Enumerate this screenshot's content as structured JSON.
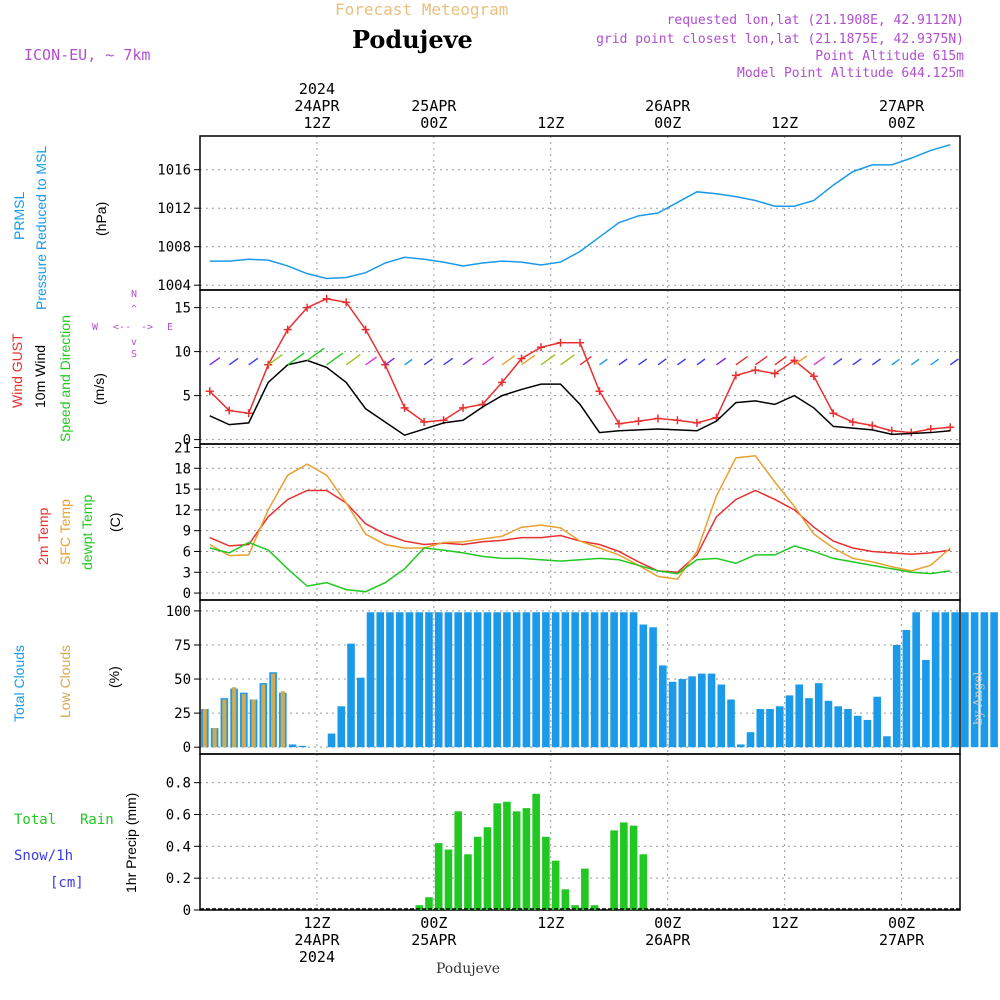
{
  "header": {
    "subtitle": "Forecast Meteogram",
    "location": "Podujeve",
    "model": "ICON-EU, ~ 7km",
    "requested": "requested lon,lat (21.1908E, 42.9112N)",
    "grid": "grid point closest lon,lat (21.1875E, 42.9375N)",
    "altitude": "Point Altitude 615m",
    "model_altitude": "Model Point Altitude 644.125m",
    "footer": "Podujeve",
    "credit": "by Angel"
  },
  "time_axis": {
    "top_labels": [
      {
        "h": 12,
        "lines": [
          "2024",
          "24APR",
          "12Z"
        ]
      },
      {
        "h": 24,
        "lines": [
          "25APR",
          "00Z"
        ]
      },
      {
        "h": 36,
        "lines": [
          "12Z"
        ]
      },
      {
        "h": 48,
        "lines": [
          "26APR",
          "00Z"
        ]
      },
      {
        "h": 60,
        "lines": [
          "12Z"
        ]
      },
      {
        "h": 72,
        "lines": [
          "27APR",
          "00Z"
        ]
      }
    ],
    "bottom_labels": [
      {
        "h": 12,
        "lines": [
          "12Z",
          "24APR",
          "2024"
        ]
      },
      {
        "h": 24,
        "lines": [
          "00Z",
          "25APR"
        ]
      },
      {
        "h": 36,
        "lines": [
          "12Z"
        ]
      },
      {
        "h": 48,
        "lines": [
          "00Z",
          "26APR"
        ]
      },
      {
        "h": 60,
        "lines": [
          "12Z"
        ]
      },
      {
        "h": 72,
        "lines": [
          "00Z",
          "27APR"
        ]
      }
    ]
  },
  "panels": {
    "pressure": {
      "label1": "PRMSL",
      "label2": "Pressure Reduced to MSL",
      "unit": "(hPa)",
      "color": "#1a9ae8"
    },
    "wind": {
      "label_gust": "Wind GUST",
      "label_wind1": "10m Wind",
      "label_wind2": "Speed and Direction",
      "unit": "(m/s)",
      "compass_n": "N",
      "compass_s": "S",
      "compass_w": "W",
      "compass_e": "E"
    },
    "temp": {
      "label1": "2m Temp",
      "label2": "SFC Temp",
      "label3": "dewpt Temp",
      "unit": "(C)"
    },
    "clouds": {
      "label1": "Total Clouds",
      "label2": "Low Clouds",
      "unit": "(%)"
    },
    "precip": {
      "label1": "Total",
      "label2": "Rain",
      "label3": "Snow/1h",
      "label4": "[cm]",
      "unit": "1hr Precip (mm)"
    }
  },
  "chart_data": [
    {
      "type": "line",
      "title": "PRMSL Pressure Reduced to MSL",
      "ylabel": "hPa",
      "ylim": [
        1003.5,
        1019.5
      ],
      "yticks": [
        1004,
        1008,
        1012,
        1016
      ],
      "x": [
        1,
        3,
        5,
        7,
        9,
        11,
        13,
        15,
        17,
        19,
        21,
        23,
        25,
        27,
        29,
        31,
        33,
        35,
        37,
        39,
        41,
        43,
        45,
        47,
        49,
        51,
        53,
        55,
        57,
        59,
        61,
        63,
        65,
        67,
        69,
        71,
        73,
        75,
        77
      ],
      "series": [
        {
          "name": "PRMSL",
          "values": [
            1006.5,
            1006.5,
            1006.7,
            1006.6,
            1006.0,
            1005.2,
            1004.7,
            1004.8,
            1005.3,
            1006.3,
            1006.9,
            1006.7,
            1006.4,
            1006.0,
            1006.3,
            1006.5,
            1006.4,
            1006.1,
            1006.4,
            1007.5,
            1009.0,
            1010.5,
            1011.2,
            1011.5,
            1012.6,
            1013.7,
            1013.5,
            1013.2,
            1012.8,
            1012.2,
            1012.2,
            1012.8,
            1014.4,
            1015.8,
            1016.5,
            1016.5,
            1017.2,
            1018.0,
            1018.6
          ]
        }
      ]
    },
    {
      "type": "line",
      "title": "Wind GUST / 10m Wind Speed and Direction",
      "ylabel": "m/s",
      "ylim": [
        -0.5,
        17
      ],
      "yticks": [
        0,
        5,
        10,
        15
      ],
      "x": [
        1,
        3,
        5,
        7,
        9,
        11,
        13,
        15,
        17,
        19,
        21,
        23,
        25,
        27,
        29,
        31,
        33,
        35,
        37,
        39,
        41,
        43,
        45,
        47,
        49,
        51,
        53,
        55,
        57,
        59,
        61,
        63,
        65,
        67,
        69,
        71,
        73,
        75,
        77
      ],
      "series": [
        {
          "name": "Wind GUST",
          "color": "#e83030",
          "values": [
            5.5,
            3.3,
            3.0,
            8.5,
            12.5,
            15.0,
            16.0,
            15.6,
            12.5,
            8.5,
            3.6,
            2.0,
            2.2,
            3.6,
            4.0,
            6.5,
            9.2,
            10.5,
            11.0,
            11.0,
            5.5,
            1.8,
            2.1,
            2.4,
            2.2,
            1.9,
            2.5,
            7.3,
            7.9,
            7.5,
            9.0,
            7.2,
            3.0,
            2.0,
            1.6,
            1.0,
            0.8,
            1.2,
            1.4
          ]
        },
        {
          "name": "10m Wind",
          "color": "#000000",
          "values": [
            2.7,
            1.7,
            1.9,
            6.5,
            8.5,
            9.0,
            8.2,
            6.5,
            3.5,
            2.0,
            0.5,
            1.2,
            1.9,
            2.2,
            3.7,
            5.0,
            5.7,
            6.3,
            6.3,
            4.0,
            0.8,
            1.0,
            1.1,
            1.2,
            1.1,
            1.0,
            2.1,
            4.2,
            4.4,
            4.0,
            5.0,
            3.6,
            1.5,
            1.3,
            1.1,
            0.6,
            0.7,
            0.8,
            1.0
          ]
        }
      ],
      "arrow_hours": [
        1,
        3,
        5,
        7,
        9,
        11,
        13,
        15,
        17,
        19,
        21,
        23,
        25,
        27,
        29,
        31,
        33,
        35,
        37,
        39,
        41,
        43,
        45,
        47,
        49,
        51,
        53,
        55,
        57,
        59,
        61,
        63,
        65,
        67,
        69,
        71,
        73,
        75,
        77
      ]
    },
    {
      "type": "line",
      "title": "2m Temp / SFC Temp / dewpt Temp",
      "ylabel": "C",
      "ylim": [
        -1,
        21.5
      ],
      "yticks": [
        0,
        3,
        6,
        9,
        12,
        15,
        18,
        21
      ],
      "x": [
        1,
        3,
        5,
        7,
        9,
        11,
        13,
        15,
        17,
        19,
        21,
        23,
        25,
        27,
        29,
        31,
        33,
        35,
        37,
        39,
        41,
        43,
        45,
        47,
        49,
        51,
        53,
        55,
        57,
        59,
        61,
        63,
        65,
        67,
        69,
        71,
        73,
        75,
        77
      ],
      "series": [
        {
          "name": "2m Temp",
          "color": "#e83030",
          "values": [
            8.0,
            6.8,
            7.0,
            11.0,
            13.5,
            14.8,
            14.8,
            13.0,
            10.0,
            8.5,
            7.5,
            7.0,
            7.2,
            7.0,
            7.4,
            7.6,
            8.0,
            8.0,
            8.3,
            7.5,
            7.0,
            6.0,
            4.5,
            3.2,
            3.0,
            5.5,
            11.0,
            13.5,
            14.8,
            13.5,
            12.0,
            9.5,
            7.5,
            6.5,
            6.0,
            5.8,
            5.6,
            5.8,
            6.2
          ]
        },
        {
          "name": "SFC Temp",
          "color": "#e8a030",
          "values": [
            7.0,
            5.4,
            5.5,
            12.0,
            17.0,
            18.6,
            17.0,
            13.0,
            8.5,
            7.0,
            6.5,
            6.5,
            7.3,
            7.4,
            7.8,
            8.2,
            9.5,
            9.8,
            9.4,
            7.5,
            6.5,
            5.5,
            4.0,
            2.4,
            2.0,
            6.0,
            14.0,
            19.5,
            19.8,
            16.0,
            12.5,
            8.5,
            6.5,
            5.0,
            4.5,
            3.8,
            3.2,
            4.0,
            6.5
          ]
        },
        {
          "name": "dewpt Temp",
          "color": "#22c822",
          "values": [
            6.5,
            5.8,
            7.3,
            6.2,
            3.5,
            1.0,
            1.5,
            0.5,
            0.2,
            1.5,
            3.5,
            6.5,
            6.2,
            5.8,
            5.3,
            5.0,
            5.0,
            4.8,
            4.6,
            4.8,
            5.0,
            4.8,
            4.0,
            3.2,
            2.8,
            4.8,
            5.0,
            4.3,
            5.5,
            5.5,
            6.8,
            6.0,
            5.0,
            4.5,
            4.0,
            3.5,
            3.0,
            2.8,
            3.2
          ]
        }
      ]
    },
    {
      "type": "bar",
      "title": "Total Clouds / Low Clouds",
      "ylabel": "%",
      "ylim": [
        -5,
        108
      ],
      "yticks": [
        0,
        25,
        50,
        75,
        100
      ],
      "x_start_hour": 0,
      "series": [
        {
          "name": "Total Clouds",
          "color": "#1a9ae8",
          "values": [
            28,
            14,
            36,
            43,
            40,
            35,
            47,
            55,
            40,
            2,
            1,
            0,
            0,
            10,
            30,
            76,
            51,
            99,
            99,
            99,
            99,
            99,
            99,
            99,
            99,
            99,
            99,
            99,
            99,
            99,
            99,
            99,
            99,
            99,
            99,
            99,
            99,
            99,
            99,
            99,
            99,
            99,
            99,
            99,
            99,
            90,
            88,
            60,
            48,
            50,
            52,
            54,
            54,
            46,
            35,
            2,
            11,
            28,
            28,
            30,
            38,
            46,
            36,
            47,
            34,
            30,
            28,
            23,
            20,
            37,
            8,
            75,
            86,
            99,
            64,
            99,
            99,
            99,
            99,
            99,
            99,
            99,
            99,
            99
          ]
        },
        {
          "name": "Low Clouds",
          "color": "#d4aa50",
          "values": [
            28,
            14,
            35,
            44,
            39,
            35,
            46,
            54,
            41,
            0,
            0,
            0,
            0,
            0,
            0,
            0,
            0,
            0,
            0,
            0,
            0,
            0,
            0,
            0,
            0,
            0,
            0,
            0,
            0,
            0,
            0,
            0,
            0,
            0,
            0,
            0,
            0,
            0,
            0,
            0,
            0,
            0,
            0,
            0,
            0,
            0,
            0,
            0,
            0,
            0,
            0,
            0,
            0,
            0,
            0,
            0,
            0,
            0,
            0,
            0,
            0,
            0,
            0,
            0,
            0,
            0,
            0,
            0,
            0,
            0,
            0,
            0,
            0,
            0,
            0,
            0,
            0,
            0,
            0,
            0,
            0,
            0,
            0,
            0
          ]
        }
      ]
    },
    {
      "type": "bar",
      "title": "1hr Precip",
      "ylabel": "mm",
      "ylim": [
        0,
        0.98
      ],
      "yticks": [
        0,
        0.2,
        0.4,
        0.6,
        0.8
      ],
      "x_start_hour": 22,
      "series": [
        {
          "name": "Total Rain",
          "color": "#22c822",
          "values": [
            0.03,
            0.08,
            0.42,
            0.38,
            0.62,
            0.35,
            0.46,
            0.52,
            0.67,
            0.68,
            0.62,
            0.64,
            0.73,
            0.46,
            0.31,
            0.13,
            0.03,
            0.26,
            0.03,
            0.0,
            0.5,
            0.55,
            0.53,
            0.35
          ]
        }
      ]
    }
  ]
}
